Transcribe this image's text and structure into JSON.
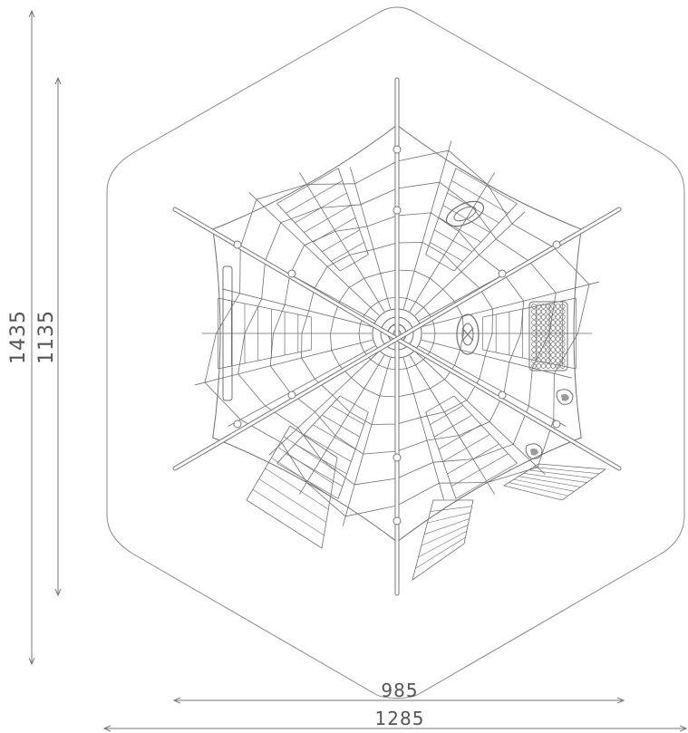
{
  "dimensions": {
    "outer_height": "1435",
    "inner_height": "1135",
    "inner_width": "985",
    "outer_width": "1285"
  },
  "colors": {
    "outline": "#8a8a8a",
    "net": "#6f6f6f",
    "pole": "#777777",
    "dimension": "#777777",
    "text": "#555555"
  }
}
